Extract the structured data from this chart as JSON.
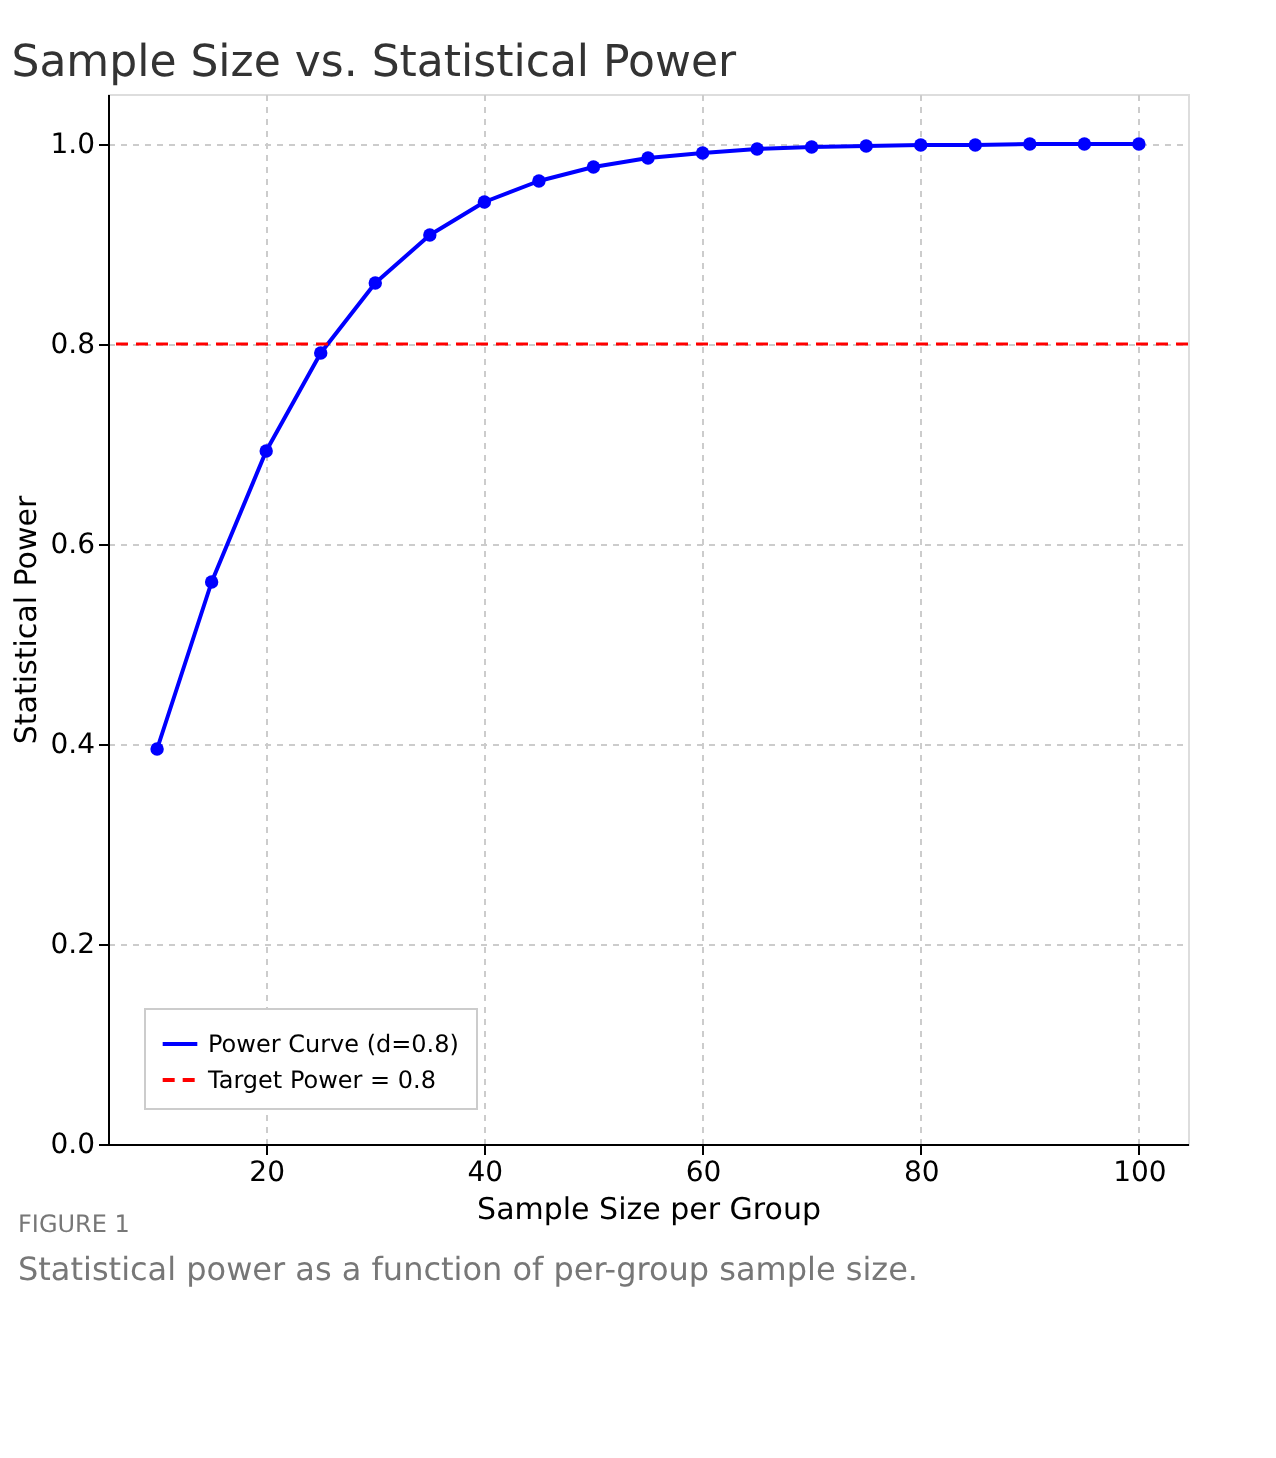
{
  "chart_data": {
    "type": "line",
    "title": "Sample Size vs. Statistical Power",
    "xlabel": "Sample Size per Group",
    "ylabel": "Statistical Power",
    "x": [
      10,
      15,
      20,
      25,
      30,
      35,
      40,
      45,
      50,
      55,
      60,
      65,
      70,
      75,
      80,
      85,
      90,
      95,
      100
    ],
    "series": [
      {
        "name": "Power Curve (d=0.8)",
        "color": "#0000ff",
        "values": [
          0.395,
          0.562,
          0.693,
          0.791,
          0.861,
          0.909,
          0.942,
          0.963,
          0.977,
          0.986,
          0.991,
          0.995,
          0.997,
          0.998,
          0.999,
          0.999,
          1.0,
          1.0,
          1.0
        ]
      }
    ],
    "ref_lines": [
      {
        "axis": "y",
        "value": 0.8,
        "label": "Target Power = 0.8",
        "color": "#ff0000",
        "line_style": "dashed"
      }
    ],
    "xlim": [
      5.5,
      104.5
    ],
    "xticks": [
      20,
      40,
      60,
      80,
      100
    ],
    "ylim": [
      0,
      1.05
    ],
    "yticks": [
      {
        "value": 0,
        "label": "0.0"
      },
      0.2,
      0.4,
      0.6,
      0.8,
      {
        "value": 1,
        "label": "1.0"
      }
    ],
    "grid": true,
    "legend": "bottom left",
    "marker": "circle",
    "line_style": "solid",
    "annotations": [
      "FIGURE 1",
      "Statistical power as a function of per-group sample size."
    ]
  }
}
